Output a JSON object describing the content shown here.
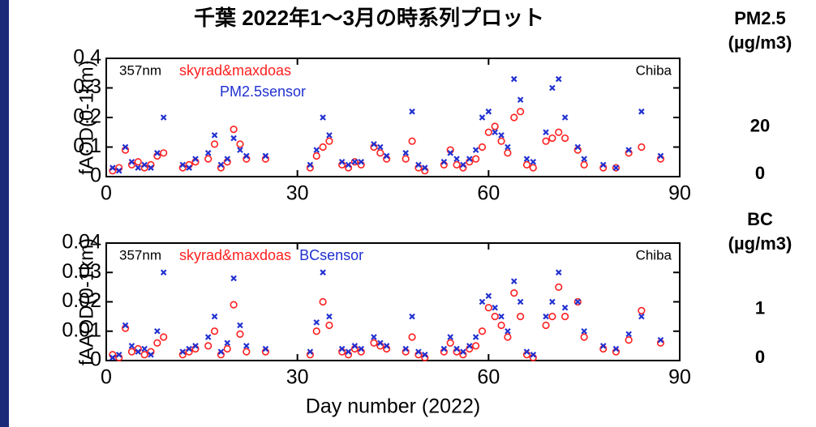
{
  "title": "千葉 2022年1〜3月の時系列プロット",
  "chart_data": [
    {
      "type": "scatter",
      "ylabel": "fAOD(0-1km)",
      "annotations": [
        "357nm",
        "Chiba"
      ],
      "xlim": [
        0,
        90
      ],
      "xticks": [
        0,
        30,
        60,
        90
      ],
      "ylim": [
        0,
        0.4
      ],
      "yticks": [
        0,
        0.1,
        0.2,
        0.3,
        0.4
      ],
      "y2label": [
        "PM2.5",
        "(µg/m3)"
      ],
      "y2lim": [
        0,
        50
      ],
      "y2ticks": [
        0,
        20
      ],
      "x": [
        1,
        2,
        3,
        4,
        5,
        6,
        7,
        8,
        9,
        12,
        13,
        14,
        16,
        17,
        18,
        19,
        20,
        21,
        22,
        25,
        32,
        33,
        34,
        35,
        37,
        38,
        39,
        40,
        42,
        43,
        44,
        47,
        48,
        49,
        50,
        53,
        54,
        55,
        56,
        57,
        58,
        59,
        60,
        61,
        62,
        63,
        64,
        65,
        66,
        67,
        69,
        70,
        71,
        72,
        74,
        75,
        78,
        80,
        82,
        84,
        87
      ],
      "series": [
        {
          "name": "skyrad&maxdoas",
          "color": "#ff2020",
          "marker": "circle",
          "values": [
            0.02,
            0.03,
            0.09,
            0.04,
            0.05,
            0.03,
            0.04,
            0.07,
            0.08,
            0.03,
            0.04,
            0.05,
            0.06,
            0.11,
            0.03,
            0.05,
            0.16,
            0.11,
            0.06,
            0.06,
            0.03,
            0.07,
            0.1,
            0.12,
            0.04,
            0.03,
            0.05,
            0.04,
            0.1,
            0.08,
            0.06,
            0.06,
            0.12,
            0.03,
            0.02,
            0.04,
            0.09,
            0.04,
            0.03,
            0.05,
            0.06,
            0.1,
            0.15,
            0.17,
            0.12,
            0.08,
            0.2,
            0.22,
            0.04,
            0.03,
            0.12,
            0.13,
            0.15,
            0.13,
            0.09,
            0.04,
            0.03,
            0.03,
            0.08,
            0.1,
            0.06
          ]
        },
        {
          "name": "PM2.5sensor",
          "color": "#2030d0",
          "marker": "cross",
          "values": [
            0.03,
            0.02,
            0.1,
            0.05,
            0.03,
            0.04,
            0.03,
            0.08,
            0.2,
            0.04,
            0.03,
            0.06,
            0.08,
            0.14,
            0.04,
            0.06,
            0.13,
            0.09,
            0.07,
            0.07,
            0.04,
            0.09,
            0.2,
            0.14,
            0.05,
            0.04,
            0.05,
            0.05,
            0.11,
            0.1,
            0.07,
            0.08,
            0.22,
            0.04,
            0.03,
            0.05,
            0.08,
            0.06,
            0.04,
            0.06,
            0.09,
            0.2,
            0.22,
            0.15,
            0.14,
            0.1,
            0.33,
            0.26,
            0.06,
            0.05,
            0.15,
            0.3,
            0.33,
            0.2,
            0.1,
            0.06,
            0.04,
            0.03,
            0.09,
            0.22,
            0.07
          ]
        }
      ]
    },
    {
      "type": "scatter",
      "ylabel": "fAAOD(0-1km)",
      "xlabel": "Day number (2022)",
      "annotations": [
        "357nm",
        "Chiba"
      ],
      "xlim": [
        0,
        90
      ],
      "xticks": [
        0,
        30,
        60,
        90
      ],
      "ylim": [
        0,
        0.04
      ],
      "yticks": [
        0,
        0.01,
        0.02,
        0.03,
        0.04
      ],
      "y2label": [
        "BC",
        "(µg/m3)"
      ],
      "y2lim": [
        0,
        2.4
      ],
      "y2ticks": [
        0,
        1
      ],
      "x": [
        1,
        2,
        3,
        4,
        5,
        6,
        7,
        8,
        9,
        12,
        13,
        14,
        16,
        17,
        18,
        19,
        20,
        21,
        22,
        25,
        32,
        33,
        34,
        35,
        37,
        38,
        39,
        40,
        42,
        43,
        44,
        47,
        48,
        49,
        50,
        53,
        54,
        55,
        56,
        57,
        58,
        59,
        60,
        61,
        62,
        63,
        64,
        65,
        66,
        67,
        69,
        70,
        71,
        72,
        74,
        75,
        78,
        80,
        82,
        84,
        87
      ],
      "series": [
        {
          "name": "skyrad&maxdoas",
          "color": "#ff2020",
          "marker": "circle",
          "values": [
            0.002,
            0.001,
            0.011,
            0.003,
            0.004,
            0.002,
            0.003,
            0.006,
            0.008,
            0.002,
            0.003,
            0.004,
            0.005,
            0.01,
            0.002,
            0.004,
            0.019,
            0.009,
            0.003,
            0.003,
            0.002,
            0.01,
            0.02,
            0.012,
            0.003,
            0.002,
            0.004,
            0.003,
            0.006,
            0.005,
            0.004,
            0.003,
            0.008,
            0.002,
            0.001,
            0.003,
            0.006,
            0.003,
            0.002,
            0.004,
            0.005,
            0.01,
            0.018,
            0.015,
            0.012,
            0.008,
            0.023,
            0.015,
            0.002,
            0.001,
            0.012,
            0.015,
            0.025,
            0.015,
            0.02,
            0.008,
            0.004,
            0.003,
            0.007,
            0.017,
            0.006
          ]
        },
        {
          "name": "BCsensor",
          "color": "#2030d0",
          "marker": "cross",
          "values": [
            0.001,
            0.002,
            0.012,
            0.005,
            0.003,
            0.004,
            0.002,
            0.01,
            0.03,
            0.003,
            0.004,
            0.005,
            0.008,
            0.015,
            0.003,
            0.006,
            0.028,
            0.012,
            0.005,
            0.004,
            0.003,
            0.013,
            0.03,
            0.015,
            0.004,
            0.003,
            0.005,
            0.004,
            0.008,
            0.006,
            0.005,
            0.004,
            0.015,
            0.003,
            0.002,
            0.004,
            0.008,
            0.004,
            0.003,
            0.005,
            0.008,
            0.02,
            0.022,
            0.018,
            0.015,
            0.01,
            0.027,
            0.02,
            0.003,
            0.002,
            0.015,
            0.02,
            0.03,
            0.018,
            0.02,
            0.01,
            0.005,
            0.004,
            0.009,
            0.015,
            0.007
          ]
        }
      ]
    }
  ]
}
